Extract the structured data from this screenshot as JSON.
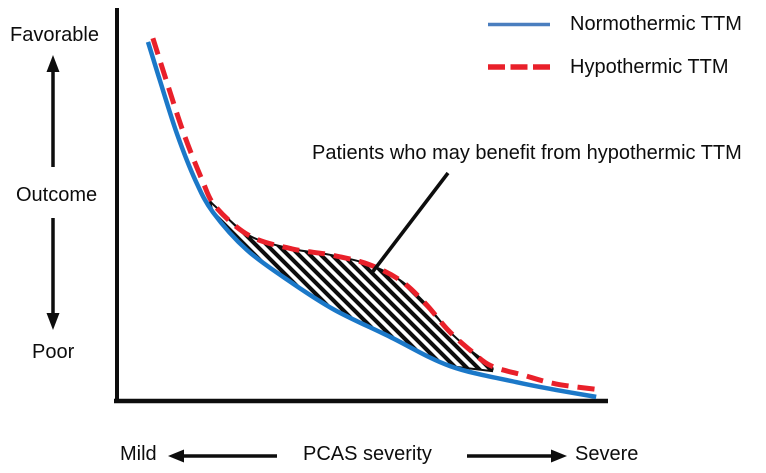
{
  "labels": {
    "y_top": "Favorable",
    "y_mid": "Outcome",
    "y_bottom": "Poor",
    "x_left": "Mild",
    "x_title": "PCAS severity",
    "x_right": "Severe",
    "annotation": "Patients who may benefit from hypothermic TTM"
  },
  "legend": {
    "items": [
      {
        "label": "Normothermic TTM",
        "style": "solid"
      },
      {
        "label": "Hypothermic TTM",
        "style": "dashed"
      }
    ]
  },
  "colors": {
    "ink": "#0d0d0d",
    "normothermic_curve": "#1b78c8",
    "normothermic_legend": "#4a7ebf",
    "hypothermic": "#e9202a",
    "background": "#ffffff"
  },
  "chart_data": {
    "type": "line",
    "title": "",
    "xlabel": "PCAS severity (Mild to Severe)",
    "ylabel": "Outcome (Poor to Favorable)",
    "x_range": [
      0,
      1
    ],
    "y_range": [
      0,
      1
    ],
    "grid": false,
    "legend_position": "top-right",
    "series": [
      {
        "name": "Normothermic TTM",
        "style": "solid",
        "color_key": "normothermic_curve",
        "points": [
          [
            0.065,
            0.968
          ],
          [
            0.089,
            0.865
          ],
          [
            0.124,
            0.72
          ],
          [
            0.161,
            0.596
          ],
          [
            0.197,
            0.509
          ],
          [
            0.266,
            0.407
          ],
          [
            0.358,
            0.318
          ],
          [
            0.445,
            0.245
          ],
          [
            0.557,
            0.173
          ],
          [
            0.679,
            0.094
          ],
          [
            0.813,
            0.051
          ],
          [
            0.894,
            0.03
          ],
          [
            0.976,
            0.011
          ]
        ]
      },
      {
        "name": "Hypothermic TTM",
        "style": "dashed",
        "color_key": "hypothermic",
        "points": [
          [
            0.075,
            0.978
          ],
          [
            0.102,
            0.865
          ],
          [
            0.138,
            0.72
          ],
          [
            0.175,
            0.596
          ],
          [
            0.203,
            0.523
          ],
          [
            0.272,
            0.445
          ],
          [
            0.358,
            0.41
          ],
          [
            0.435,
            0.394
          ],
          [
            0.512,
            0.369
          ],
          [
            0.577,
            0.326
          ],
          [
            0.628,
            0.264
          ],
          [
            0.675,
            0.191
          ],
          [
            0.72,
            0.137
          ],
          [
            0.762,
            0.095
          ],
          [
            0.827,
            0.07
          ],
          [
            0.894,
            0.046
          ],
          [
            0.986,
            0.03
          ]
        ]
      }
    ],
    "shaded_region": {
      "label": "Patients who may benefit from hypothermic TTM",
      "between": [
        "Hypothermic TTM",
        "Normothermic TTM"
      ],
      "x_range": [
        0.19,
        0.764
      ],
      "hatch": "diagonal"
    }
  }
}
